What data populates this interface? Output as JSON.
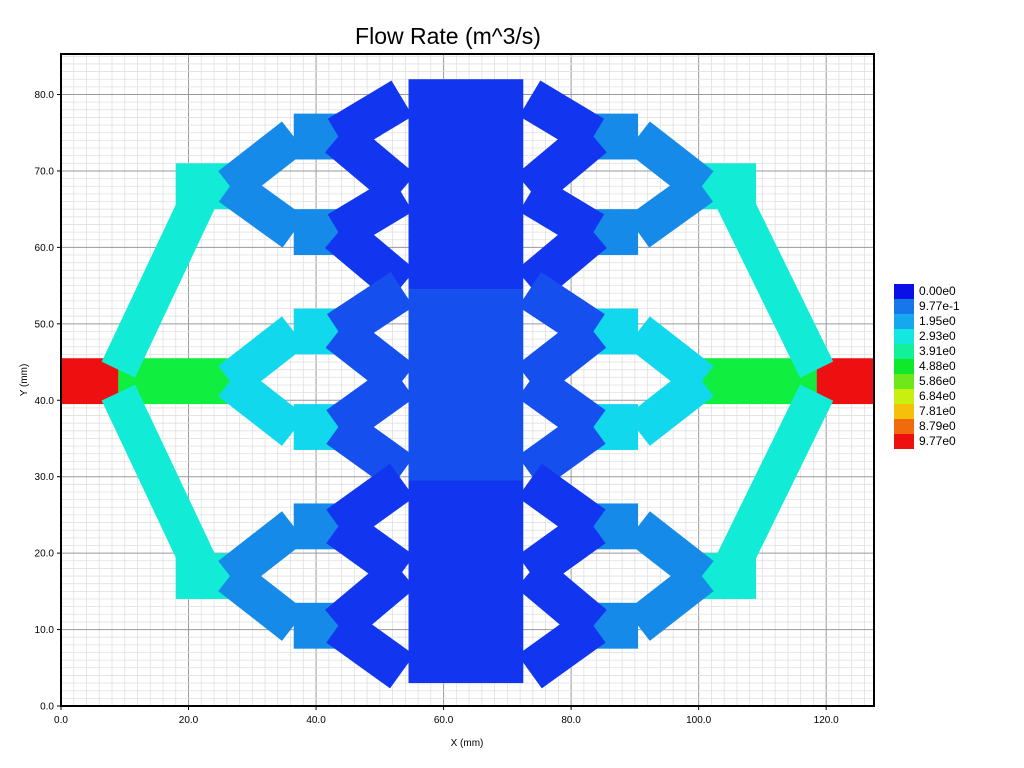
{
  "chart_data": {
    "type": "heatmap",
    "title": "Flow Rate (m^3/s)",
    "xlabel": "X (mm)",
    "ylabel": "Y (mm)",
    "xlim": [
      0,
      127.5
    ],
    "ylim": [
      0,
      85.3
    ],
    "grid": true,
    "x_ticks": [
      "0.0",
      "20.0",
      "40.0",
      "60.0",
      "80.0",
      "100.0",
      "120.0"
    ],
    "x_tick_values": [
      0,
      20,
      40,
      60,
      80,
      100,
      120
    ],
    "y_ticks": [
      "0.0",
      "10.0",
      "20.0",
      "30.0",
      "40.0",
      "50.0",
      "60.0",
      "70.0",
      "80.0"
    ],
    "y_tick_values": [
      0,
      10,
      20,
      30,
      40,
      50,
      60,
      70,
      80
    ],
    "legend_position": "right",
    "legend": [
      {
        "label": "0.00e0",
        "color": "#0b10e6"
      },
      {
        "label": "9.77e-1",
        "color": "#1677ea"
      },
      {
        "label": "1.95e0",
        "color": "#15a8ef"
      },
      {
        "label": "2.93e0",
        "color": "#13e7e0"
      },
      {
        "label": "3.91e0",
        "color": "#14f09a"
      },
      {
        "label": "4.88e0",
        "color": "#10e82a"
      },
      {
        "label": "5.86e0",
        "color": "#6ee81a"
      },
      {
        "label": "6.84e0",
        "color": "#c8ef10"
      },
      {
        "label": "7.81e0",
        "color": "#f4c00a"
      },
      {
        "label": "8.79e0",
        "color": "#f06a0e"
      },
      {
        "label": "9.77e0",
        "color": "#ee1010"
      }
    ],
    "colors": {
      "center_dark": "#1236f0",
      "center_mid": "#1550ee",
      "blue_mid": "#168ae8",
      "light_blue": "#12d8ee",
      "teal": "#12ecd6",
      "green": "#10ee40",
      "red": "#ee1010"
    },
    "segments": [
      {
        "kind": "rect",
        "x0": 0,
        "x1": 9,
        "y0": 39.5,
        "y1": 45.5,
        "color": "red"
      },
      {
        "kind": "rect",
        "x0": 118.5,
        "x1": 127.5,
        "y0": 39.5,
        "y1": 45.5,
        "color": "red"
      },
      {
        "kind": "rect",
        "x0": 9,
        "x1": 26.5,
        "y0": 39.5,
        "y1": 45.5,
        "color": "green"
      },
      {
        "kind": "rect",
        "x0": 100.5,
        "x1": 118.5,
        "y0": 39.5,
        "y1": 45.5,
        "color": "green"
      },
      {
        "kind": "line",
        "p": [
          [
            9,
            44
          ],
          [
            22,
            67
          ]
        ],
        "w": 5.8,
        "color": "teal"
      },
      {
        "kind": "line",
        "p": [
          [
            9,
            41
          ],
          [
            22,
            18
          ]
        ],
        "w": 5.8,
        "color": "teal"
      },
      {
        "kind": "line",
        "p": [
          [
            118.5,
            44
          ],
          [
            105,
            67
          ]
        ],
        "w": 5.8,
        "color": "teal"
      },
      {
        "kind": "line",
        "p": [
          [
            118.5,
            41
          ],
          [
            105,
            18
          ]
        ],
        "w": 5.8,
        "color": "teal"
      },
      {
        "kind": "rect",
        "x0": 18,
        "x1": 26.5,
        "y0": 65,
        "y1": 71,
        "color": "teal"
      },
      {
        "kind": "rect",
        "x0": 18,
        "x1": 26.5,
        "y0": 14,
        "y1": 20,
        "color": "teal"
      },
      {
        "kind": "rect",
        "x0": 100.5,
        "x1": 109,
        "y0": 65,
        "y1": 71,
        "color": "teal"
      },
      {
        "kind": "rect",
        "x0": 100.5,
        "x1": 109,
        "y0": 14,
        "y1": 20,
        "color": "teal"
      },
      {
        "kind": "line",
        "p": [
          [
            26.5,
            68
          ],
          [
            36.5,
            74.5
          ]
        ],
        "w": 6,
        "color": "blue_mid"
      },
      {
        "kind": "line",
        "p": [
          [
            26.5,
            68
          ],
          [
            36.5,
            62
          ]
        ],
        "w": 6,
        "color": "blue_mid"
      },
      {
        "kind": "line",
        "p": [
          [
            100.5,
            68
          ],
          [
            90.5,
            74.5
          ]
        ],
        "w": 6,
        "color": "blue_mid"
      },
      {
        "kind": "line",
        "p": [
          [
            100.5,
            68
          ],
          [
            90.5,
            62
          ]
        ],
        "w": 6,
        "color": "blue_mid"
      },
      {
        "kind": "rect",
        "x0": 36.5,
        "x1": 45,
        "y0": 71.5,
        "y1": 77.5,
        "color": "blue_mid"
      },
      {
        "kind": "rect",
        "x0": 36.5,
        "x1": 45,
        "y0": 59,
        "y1": 65,
        "color": "blue_mid"
      },
      {
        "kind": "rect",
        "x0": 82,
        "x1": 90.5,
        "y0": 71.5,
        "y1": 77.5,
        "color": "blue_mid"
      },
      {
        "kind": "rect",
        "x0": 82,
        "x1": 90.5,
        "y0": 59,
        "y1": 65,
        "color": "blue_mid"
      },
      {
        "kind": "line",
        "p": [
          [
            26.5,
            42.5
          ],
          [
            36.5,
            49
          ]
        ],
        "w": 6,
        "color": "light_blue"
      },
      {
        "kind": "line",
        "p": [
          [
            26.5,
            42.5
          ],
          [
            36.5,
            36
          ]
        ],
        "w": 6,
        "color": "light_blue"
      },
      {
        "kind": "line",
        "p": [
          [
            100.5,
            42.5
          ],
          [
            90.5,
            49
          ]
        ],
        "w": 6,
        "color": "light_blue"
      },
      {
        "kind": "line",
        "p": [
          [
            100.5,
            42.5
          ],
          [
            90.5,
            36
          ]
        ],
        "w": 6,
        "color": "light_blue"
      },
      {
        "kind": "rect",
        "x0": 36.5,
        "x1": 45,
        "y0": 46,
        "y1": 52,
        "color": "light_blue"
      },
      {
        "kind": "rect",
        "x0": 36.5,
        "x1": 45,
        "y0": 33.5,
        "y1": 39.5,
        "color": "light_blue"
      },
      {
        "kind": "rect",
        "x0": 82,
        "x1": 90.5,
        "y0": 46,
        "y1": 52,
        "color": "light_blue"
      },
      {
        "kind": "rect",
        "x0": 82,
        "x1": 90.5,
        "y0": 33.5,
        "y1": 39.5,
        "color": "light_blue"
      },
      {
        "kind": "line",
        "p": [
          [
            26.5,
            17
          ],
          [
            36.5,
            23.5
          ]
        ],
        "w": 6,
        "color": "blue_mid"
      },
      {
        "kind": "line",
        "p": [
          [
            26.5,
            17
          ],
          [
            36.5,
            10.5
          ]
        ],
        "w": 6,
        "color": "blue_mid"
      },
      {
        "kind": "line",
        "p": [
          [
            100.5,
            17
          ],
          [
            90.5,
            23.5
          ]
        ],
        "w": 6,
        "color": "blue_mid"
      },
      {
        "kind": "line",
        "p": [
          [
            100.5,
            17
          ],
          [
            90.5,
            10.5
          ]
        ],
        "w": 6,
        "color": "blue_mid"
      },
      {
        "kind": "rect",
        "x0": 36.5,
        "x1": 45,
        "y0": 20.5,
        "y1": 26.5,
        "color": "blue_mid"
      },
      {
        "kind": "rect",
        "x0": 36.5,
        "x1": 45,
        "y0": 7.5,
        "y1": 13.5,
        "color": "blue_mid"
      },
      {
        "kind": "rect",
        "x0": 82,
        "x1": 90.5,
        "y0": 20.5,
        "y1": 26.5,
        "color": "blue_mid"
      },
      {
        "kind": "rect",
        "x0": 82,
        "x1": 90.5,
        "y0": 7.5,
        "y1": 13.5,
        "color": "blue_mid"
      },
      {
        "kind": "line",
        "p": [
          [
            43.5,
            74.5
          ],
          [
            53.5,
            79.5
          ]
        ],
        "w": 6.5,
        "color": "center_dark"
      },
      {
        "kind": "line",
        "p": [
          [
            43.5,
            74.5
          ],
          [
            53.5,
            67.5
          ]
        ],
        "w": 6.5,
        "color": "center_dark"
      },
      {
        "kind": "line",
        "p": [
          [
            43.5,
            62
          ],
          [
            53.5,
            67
          ]
        ],
        "w": 6.5,
        "color": "center_dark"
      },
      {
        "kind": "line",
        "p": [
          [
            43.5,
            62
          ],
          [
            53.5,
            55
          ]
        ],
        "w": 6.5,
        "color": "center_dark"
      },
      {
        "kind": "line",
        "p": [
          [
            83.5,
            74.5
          ],
          [
            73.5,
            79.5
          ]
        ],
        "w": 6.5,
        "color": "center_dark"
      },
      {
        "kind": "line",
        "p": [
          [
            83.5,
            74.5
          ],
          [
            73.5,
            67.5
          ]
        ],
        "w": 6.5,
        "color": "center_dark"
      },
      {
        "kind": "line",
        "p": [
          [
            83.5,
            62
          ],
          [
            73.5,
            67
          ]
        ],
        "w": 6.5,
        "color": "center_dark"
      },
      {
        "kind": "line",
        "p": [
          [
            83.5,
            62
          ],
          [
            73.5,
            55
          ]
        ],
        "w": 6.5,
        "color": "center_dark"
      },
      {
        "kind": "line",
        "p": [
          [
            43.5,
            49
          ],
          [
            53.5,
            54.5
          ]
        ],
        "w": 6.5,
        "color": "center_mid"
      },
      {
        "kind": "line",
        "p": [
          [
            43.5,
            49
          ],
          [
            53.5,
            42.5
          ]
        ],
        "w": 6.5,
        "color": "center_mid"
      },
      {
        "kind": "line",
        "p": [
          [
            43.5,
            36.5
          ],
          [
            53.5,
            42.5
          ]
        ],
        "w": 6.5,
        "color": "center_mid"
      },
      {
        "kind": "line",
        "p": [
          [
            43.5,
            36.5
          ],
          [
            53.5,
            30.5
          ]
        ],
        "w": 6.5,
        "color": "center_mid"
      },
      {
        "kind": "line",
        "p": [
          [
            83.5,
            49
          ],
          [
            73.5,
            54.5
          ]
        ],
        "w": 6.5,
        "color": "center_mid"
      },
      {
        "kind": "line",
        "p": [
          [
            83.5,
            49
          ],
          [
            73.5,
            42.5
          ]
        ],
        "w": 6.5,
        "color": "center_mid"
      },
      {
        "kind": "line",
        "p": [
          [
            83.5,
            36.5
          ],
          [
            73.5,
            42.5
          ]
        ],
        "w": 6.5,
        "color": "center_mid"
      },
      {
        "kind": "line",
        "p": [
          [
            83.5,
            36.5
          ],
          [
            73.5,
            30.5
          ]
        ],
        "w": 6.5,
        "color": "center_mid"
      },
      {
        "kind": "line",
        "p": [
          [
            43.5,
            23.5
          ],
          [
            53.5,
            29.5
          ]
        ],
        "w": 6.5,
        "color": "center_dark"
      },
      {
        "kind": "line",
        "p": [
          [
            43.5,
            23.5
          ],
          [
            53.5,
            17.5
          ]
        ],
        "w": 6.5,
        "color": "center_dark"
      },
      {
        "kind": "line",
        "p": [
          [
            43.5,
            10.5
          ],
          [
            53.5,
            17.5
          ]
        ],
        "w": 6.5,
        "color": "center_dark"
      },
      {
        "kind": "line",
        "p": [
          [
            43.5,
            10.5
          ],
          [
            53.5,
            4.5
          ]
        ],
        "w": 6.5,
        "color": "center_dark"
      },
      {
        "kind": "line",
        "p": [
          [
            83.5,
            23.5
          ],
          [
            73.5,
            29.5
          ]
        ],
        "w": 6.5,
        "color": "center_dark"
      },
      {
        "kind": "line",
        "p": [
          [
            83.5,
            23.5
          ],
          [
            73.5,
            17.5
          ]
        ],
        "w": 6.5,
        "color": "center_dark"
      },
      {
        "kind": "line",
        "p": [
          [
            83.5,
            10.5
          ],
          [
            73.5,
            17.5
          ]
        ],
        "w": 6.5,
        "color": "center_dark"
      },
      {
        "kind": "line",
        "p": [
          [
            83.5,
            10.5
          ],
          [
            73.5,
            4.5
          ]
        ],
        "w": 6.5,
        "color": "center_dark"
      },
      {
        "kind": "rect",
        "x0": 54.5,
        "x1": 72.5,
        "y0": 54.5,
        "y1": 82,
        "color": "center_dark"
      },
      {
        "kind": "rect",
        "x0": 54.5,
        "x1": 72.5,
        "y0": 29.5,
        "y1": 54.5,
        "color": "center_mid"
      },
      {
        "kind": "rect",
        "x0": 54.5,
        "x1": 72.5,
        "y0": 3,
        "y1": 29.5,
        "color": "center_dark"
      }
    ]
  }
}
